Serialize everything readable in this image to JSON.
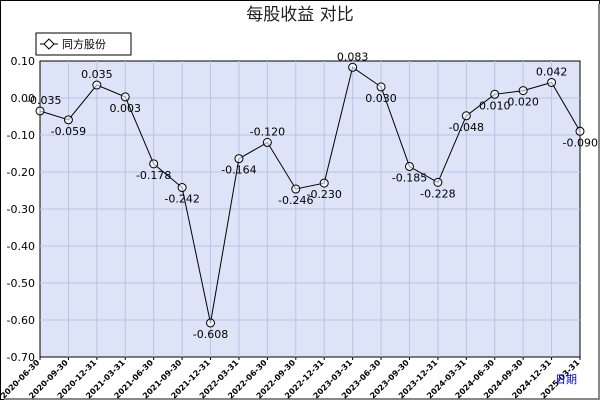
{
  "chart_data": {
    "type": "line",
    "title": "每股收益  对比",
    "xlabel": "日期",
    "ylabel": "",
    "ylim": [
      -0.7,
      0.1
    ],
    "yticks": [
      "0.10",
      "0.00",
      "-0.10",
      "-0.20",
      "-0.30",
      "-0.40",
      "-0.50",
      "-0.60",
      "-0.70"
    ],
    "grid": true,
    "legend": "top-left",
    "categories": [
      "2020-06-30",
      "2020-09-30",
      "2020-12-31",
      "2021-03-31",
      "2021-06-30",
      "2021-09-30",
      "2021-12-31",
      "2022-03-31",
      "2022-06-30",
      "2022-09-30",
      "2022-12-31",
      "2023-03-31",
      "2023-06-30",
      "2023-09-30",
      "2023-12-31",
      "2024-03-31",
      "2024-06-30",
      "2024-09-30",
      "2024-12-31",
      "2025-03-31"
    ],
    "series": [
      {
        "name": "同方股份",
        "values": [
          -0.035,
          -0.059,
          0.035,
          0.003,
          -0.178,
          -0.242,
          -0.608,
          -0.164,
          -0.12,
          -0.246,
          -0.23,
          0.083,
          0.03,
          -0.185,
          -0.228,
          -0.048,
          0.01,
          0.02,
          0.042,
          -0.09
        ],
        "labels": [
          "-0.035",
          "-0.059",
          "0.035",
          "0.003",
          "-0.178",
          "-0.242",
          "-0.608",
          "-0.164",
          "-0.120",
          "-0.246",
          "-0.230",
          "0.083",
          "0.030",
          "-0.185",
          "-0.228",
          "-0.048",
          "0.010",
          "0.020",
          "0.042",
          "-0.090"
        ]
      }
    ],
    "colors": {
      "plot_background": "#dde4f7",
      "grid": "#b8c4e8",
      "line": "#000000"
    }
  }
}
